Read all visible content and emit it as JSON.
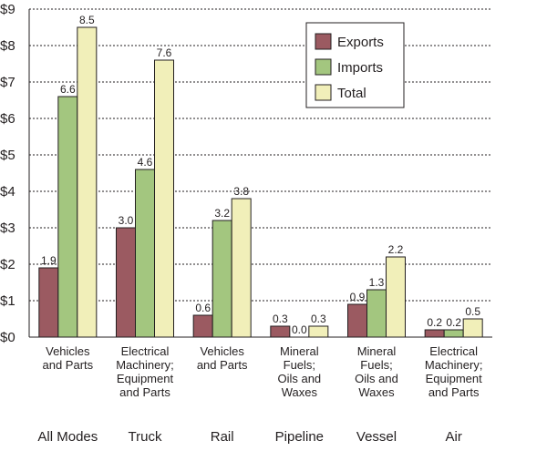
{
  "chart_data": {
    "type": "bar",
    "ylim": [
      0,
      9
    ],
    "yticks": [
      "$0",
      "$1",
      "$2",
      "$3",
      "$4",
      "$5",
      "$6",
      "$7",
      "$8",
      "$9"
    ],
    "grid": true,
    "legend_position": "top-right",
    "groups": [
      {
        "mode": "All Modes",
        "category": [
          "Vehicles",
          "and Parts"
        ]
      },
      {
        "mode": "Truck",
        "category": [
          "Electrical",
          "Machinery;",
          "Equipment",
          "and Parts"
        ]
      },
      {
        "mode": "Rail",
        "category": [
          "Vehicles",
          "and Parts"
        ]
      },
      {
        "mode": "Pipeline",
        "category": [
          "Mineral",
          "Fuels;",
          "Oils and",
          "Waxes"
        ]
      },
      {
        "mode": "Vessel",
        "category": [
          "Mineral",
          "Fuels;",
          "Oils and",
          "Waxes"
        ]
      },
      {
        "mode": "Air",
        "category": [
          "Electrical",
          "Machinery;",
          "Equipment",
          "and Parts"
        ]
      }
    ],
    "series": [
      {
        "name": "Exports",
        "color": "#9b5a61",
        "values": [
          1.9,
          3.0,
          0.6,
          0.3,
          0.9,
          0.2
        ],
        "labels": [
          "1.9",
          "3.0",
          "0.6",
          "0.3",
          "0.9",
          "0.2"
        ]
      },
      {
        "name": "Imports",
        "color": "#a3c67f",
        "values": [
          6.6,
          4.6,
          3.2,
          0.0,
          1.3,
          0.2
        ],
        "labels": [
          "6.6",
          "4.6",
          "3.2",
          "0.0",
          "1.3",
          "0.2"
        ]
      },
      {
        "name": "Total",
        "color": "#f1efb9",
        "values": [
          8.5,
          7.6,
          3.8,
          0.3,
          2.2,
          0.5
        ],
        "labels": [
          "8.5",
          "7.6",
          "3.8",
          "0.3",
          "2.2",
          "0.5"
        ]
      }
    ]
  }
}
